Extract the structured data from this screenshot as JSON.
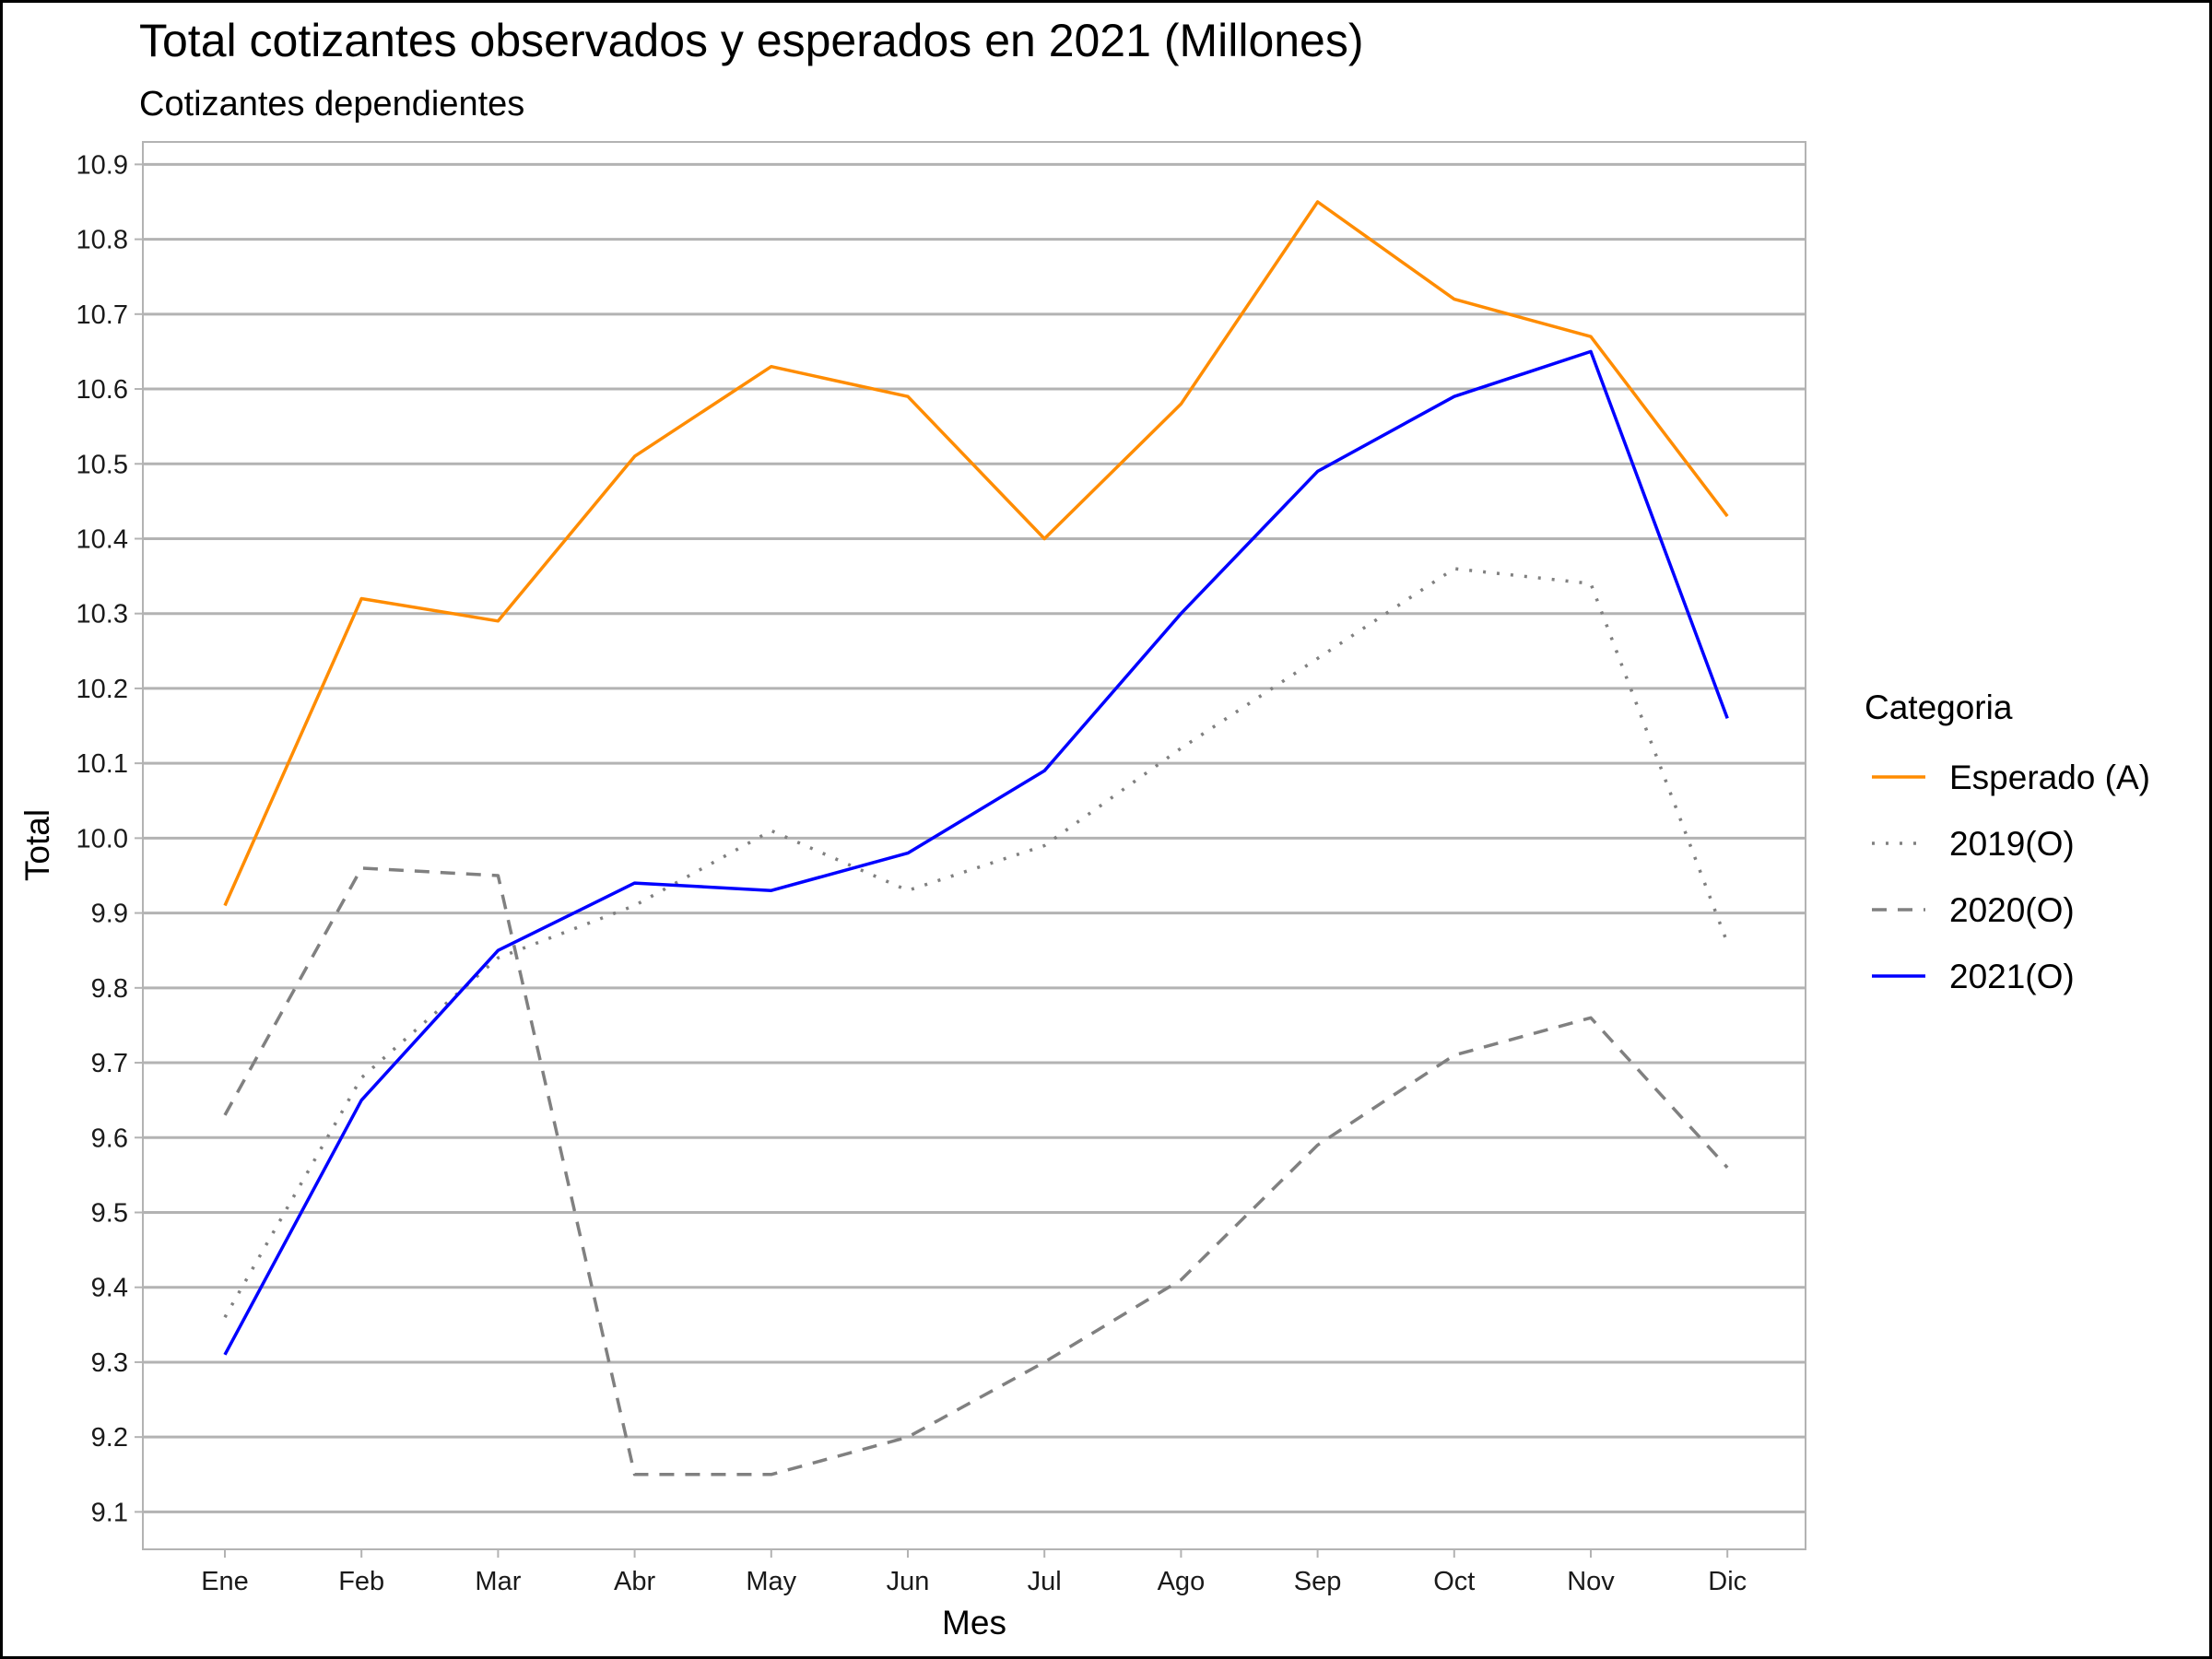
{
  "chart_data": {
    "type": "line",
    "title": "Total cotizantes observados y esperados en 2021 (Millones)",
    "subtitle": "Cotizantes dependientes",
    "xlabel": "Mes",
    "ylabel": "Total",
    "categories": [
      "Ene",
      "Feb",
      "Mar",
      "Abr",
      "May",
      "Jun",
      "Jul",
      "Ago",
      "Sep",
      "Oct",
      "Nov",
      "Dic"
    ],
    "ylim": [
      9.05,
      10.93
    ],
    "yticks": [
      "9.1",
      "9.2",
      "9.3",
      "9.4",
      "9.5",
      "9.6",
      "9.7",
      "9.8",
      "9.9",
      "10.0",
      "10.1",
      "10.2",
      "10.3",
      "10.4",
      "10.5",
      "10.6",
      "10.7",
      "10.8",
      "10.9"
    ],
    "grid": "horizontal",
    "legend": {
      "title": "Categoria",
      "position": "right"
    },
    "series": [
      {
        "name": "Esperado (A)",
        "color": "#ff8c00",
        "dash": "solid",
        "values": [
          9.91,
          10.32,
          10.29,
          10.51,
          10.63,
          10.59,
          10.4,
          10.58,
          10.85,
          10.72,
          10.67,
          10.43
        ]
      },
      {
        "name": "2019(O)",
        "color": "#808080",
        "dash": "dotted",
        "values": [
          9.36,
          9.68,
          9.84,
          9.91,
          10.01,
          9.93,
          9.99,
          10.12,
          10.24,
          10.36,
          10.34,
          9.86
        ]
      },
      {
        "name": "2020(O)",
        "color": "#808080",
        "dash": "dashed",
        "values": [
          9.63,
          9.96,
          9.95,
          9.15,
          9.15,
          9.2,
          9.3,
          9.41,
          9.59,
          9.71,
          9.76,
          9.56
        ]
      },
      {
        "name": "2021(O)",
        "color": "#0000ff",
        "dash": "solid",
        "values": [
          9.31,
          9.65,
          9.85,
          9.94,
          9.93,
          9.98,
          10.09,
          10.3,
          10.49,
          10.59,
          10.65,
          10.16
        ]
      }
    ]
  }
}
